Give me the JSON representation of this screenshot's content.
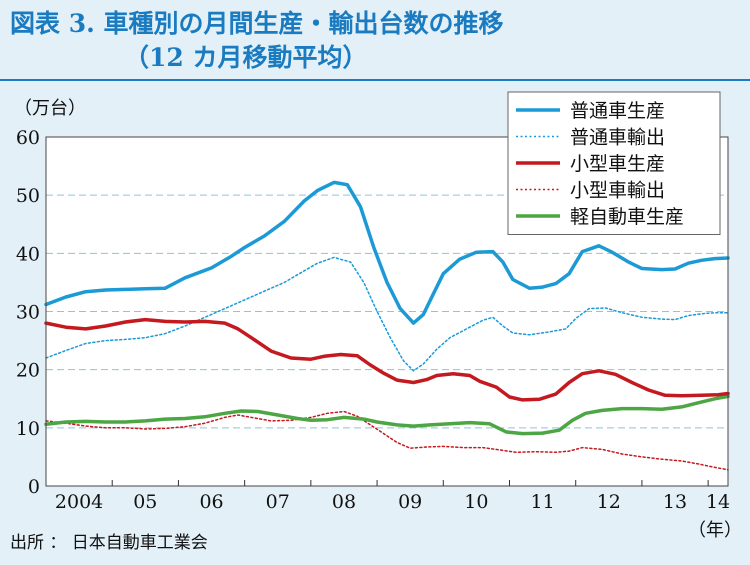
{
  "title_line1": "図表 3. 車種別の月間生産・輸出台数の推移",
  "title_line2": "（12 カ月移動平均）",
  "source": "出所 ： 日本自動車工業会",
  "chart_data": {
    "type": "line",
    "ylabel": "（万台）",
    "xlabel": "（年）",
    "ylim": [
      0,
      60
    ],
    "yticks": [
      0,
      10,
      20,
      30,
      40,
      50,
      60
    ],
    "xlim": [
      2004,
      2014.3
    ],
    "xticks": [
      {
        "label": "2004",
        "x": 2004.5
      },
      {
        "label": "05",
        "x": 2005.5
      },
      {
        "label": "06",
        "x": 2006.5
      },
      {
        "label": "07",
        "x": 2007.5
      },
      {
        "label": "08",
        "x": 2008.5
      },
      {
        "label": "09",
        "x": 2009.5
      },
      {
        "label": "10",
        "x": 2010.5
      },
      {
        "label": "11",
        "x": 2011.5
      },
      {
        "label": "12",
        "x": 2012.5
      },
      {
        "label": "13",
        "x": 2013.5
      },
      {
        "label": "14",
        "x": 2014.15
      }
    ],
    "grid": true,
    "legend_position": "top-right",
    "series": [
      {
        "name": "普通車生産",
        "color": "#1c9ad6",
        "style": "solid",
        "width": 3.5,
        "points": [
          [
            2004.0,
            31.2
          ],
          [
            2004.3,
            32.5
          ],
          [
            2004.6,
            33.4
          ],
          [
            2004.9,
            33.7
          ],
          [
            2005.2,
            33.8
          ],
          [
            2005.5,
            33.9
          ],
          [
            2005.8,
            34.0
          ],
          [
            2006.1,
            35.8
          ],
          [
            2006.5,
            37.5
          ],
          [
            2006.8,
            39.5
          ],
          [
            2007.0,
            41.0
          ],
          [
            2007.3,
            43.0
          ],
          [
            2007.6,
            45.5
          ],
          [
            2007.9,
            49.0
          ],
          [
            2008.1,
            50.8
          ],
          [
            2008.35,
            52.2
          ],
          [
            2008.55,
            51.8
          ],
          [
            2008.75,
            48.0
          ],
          [
            2008.95,
            41.0
          ],
          [
            2009.15,
            35.0
          ],
          [
            2009.35,
            30.5
          ],
          [
            2009.55,
            28.0
          ],
          [
            2009.7,
            29.5
          ],
          [
            2009.85,
            33.0
          ],
          [
            2010.0,
            36.5
          ],
          [
            2010.25,
            39.0
          ],
          [
            2010.5,
            40.2
          ],
          [
            2010.75,
            40.3
          ],
          [
            2010.9,
            38.5
          ],
          [
            2011.05,
            35.5
          ],
          [
            2011.3,
            34.0
          ],
          [
            2011.5,
            34.2
          ],
          [
            2011.7,
            34.8
          ],
          [
            2011.9,
            36.5
          ],
          [
            2012.1,
            40.3
          ],
          [
            2012.35,
            41.3
          ],
          [
            2012.55,
            40.2
          ],
          [
            2012.8,
            38.5
          ],
          [
            2013.0,
            37.4
          ],
          [
            2013.3,
            37.2
          ],
          [
            2013.5,
            37.3
          ],
          [
            2013.7,
            38.3
          ],
          [
            2013.9,
            38.8
          ],
          [
            2014.1,
            39.1
          ],
          [
            2014.3,
            39.2
          ]
        ]
      },
      {
        "name": "普通車輸出",
        "color": "#1c9ad6",
        "style": "dotted",
        "width": 1.5,
        "points": [
          [
            2004.0,
            22.0
          ],
          [
            2004.3,
            23.3
          ],
          [
            2004.6,
            24.5
          ],
          [
            2004.9,
            25.0
          ],
          [
            2005.2,
            25.2
          ],
          [
            2005.5,
            25.5
          ],
          [
            2005.8,
            26.2
          ],
          [
            2006.1,
            27.5
          ],
          [
            2006.4,
            29.0
          ],
          [
            2006.7,
            30.5
          ],
          [
            2007.0,
            32.0
          ],
          [
            2007.3,
            33.5
          ],
          [
            2007.6,
            35.0
          ],
          [
            2007.9,
            37.0
          ],
          [
            2008.1,
            38.3
          ],
          [
            2008.35,
            39.3
          ],
          [
            2008.6,
            38.5
          ],
          [
            2008.8,
            35.0
          ],
          [
            2009.0,
            30.0
          ],
          [
            2009.2,
            25.5
          ],
          [
            2009.4,
            21.5
          ],
          [
            2009.55,
            19.8
          ],
          [
            2009.7,
            21.0
          ],
          [
            2009.9,
            23.5
          ],
          [
            2010.1,
            25.5
          ],
          [
            2010.35,
            27.0
          ],
          [
            2010.6,
            28.5
          ],
          [
            2010.75,
            29.0
          ],
          [
            2010.9,
            27.5
          ],
          [
            2011.05,
            26.3
          ],
          [
            2011.3,
            26.0
          ],
          [
            2011.6,
            26.5
          ],
          [
            2011.85,
            27.0
          ],
          [
            2012.0,
            28.8
          ],
          [
            2012.2,
            30.5
          ],
          [
            2012.45,
            30.6
          ],
          [
            2012.7,
            29.8
          ],
          [
            2013.0,
            29.0
          ],
          [
            2013.3,
            28.7
          ],
          [
            2013.5,
            28.6
          ],
          [
            2013.7,
            29.3
          ],
          [
            2013.9,
            29.6
          ],
          [
            2014.1,
            29.8
          ],
          [
            2014.3,
            29.8
          ]
        ]
      },
      {
        "name": "小型車生産",
        "color": "#c41a1f",
        "style": "solid",
        "width": 3.5,
        "points": [
          [
            2004.0,
            28.0
          ],
          [
            2004.3,
            27.3
          ],
          [
            2004.6,
            27.0
          ],
          [
            2004.9,
            27.5
          ],
          [
            2005.2,
            28.2
          ],
          [
            2005.5,
            28.6
          ],
          [
            2005.8,
            28.3
          ],
          [
            2006.1,
            28.2
          ],
          [
            2006.4,
            28.3
          ],
          [
            2006.7,
            28.0
          ],
          [
            2006.9,
            27.0
          ],
          [
            2007.1,
            25.5
          ],
          [
            2007.4,
            23.2
          ],
          [
            2007.7,
            22.0
          ],
          [
            2008.0,
            21.8
          ],
          [
            2008.2,
            22.3
          ],
          [
            2008.45,
            22.6
          ],
          [
            2008.7,
            22.4
          ],
          [
            2008.9,
            20.8
          ],
          [
            2009.1,
            19.4
          ],
          [
            2009.3,
            18.2
          ],
          [
            2009.55,
            17.8
          ],
          [
            2009.75,
            18.3
          ],
          [
            2009.9,
            19.0
          ],
          [
            2010.15,
            19.3
          ],
          [
            2010.4,
            19.0
          ],
          [
            2010.55,
            18.0
          ],
          [
            2010.8,
            17.0
          ],
          [
            2011.0,
            15.3
          ],
          [
            2011.2,
            14.8
          ],
          [
            2011.45,
            14.9
          ],
          [
            2011.7,
            15.8
          ],
          [
            2011.9,
            17.8
          ],
          [
            2012.1,
            19.3
          ],
          [
            2012.35,
            19.8
          ],
          [
            2012.6,
            19.2
          ],
          [
            2012.85,
            17.8
          ],
          [
            2013.1,
            16.5
          ],
          [
            2013.35,
            15.6
          ],
          [
            2013.6,
            15.5
          ],
          [
            2013.9,
            15.6
          ],
          [
            2014.15,
            15.7
          ],
          [
            2014.3,
            15.9
          ]
        ]
      },
      {
        "name": "小型車輸出",
        "color": "#c41a1f",
        "style": "dotted",
        "width": 1.5,
        "points": [
          [
            2004.0,
            11.2
          ],
          [
            2004.3,
            10.8
          ],
          [
            2004.6,
            10.3
          ],
          [
            2004.9,
            10.0
          ],
          [
            2005.2,
            10.0
          ],
          [
            2005.5,
            9.8
          ],
          [
            2005.8,
            9.9
          ],
          [
            2006.1,
            10.2
          ],
          [
            2006.4,
            10.8
          ],
          [
            2006.7,
            11.8
          ],
          [
            2006.9,
            12.2
          ],
          [
            2007.1,
            11.8
          ],
          [
            2007.4,
            11.2
          ],
          [
            2007.7,
            11.3
          ],
          [
            2008.0,
            11.8
          ],
          [
            2008.25,
            12.5
          ],
          [
            2008.5,
            12.8
          ],
          [
            2008.7,
            12.0
          ],
          [
            2008.9,
            10.5
          ],
          [
            2009.1,
            9.0
          ],
          [
            2009.3,
            7.5
          ],
          [
            2009.5,
            6.5
          ],
          [
            2009.75,
            6.7
          ],
          [
            2010.0,
            6.8
          ],
          [
            2010.3,
            6.6
          ],
          [
            2010.6,
            6.6
          ],
          [
            2010.85,
            6.2
          ],
          [
            2011.1,
            5.8
          ],
          [
            2011.4,
            5.9
          ],
          [
            2011.7,
            5.8
          ],
          [
            2011.9,
            6.0
          ],
          [
            2012.1,
            6.6
          ],
          [
            2012.4,
            6.3
          ],
          [
            2012.7,
            5.5
          ],
          [
            2013.0,
            5.0
          ],
          [
            2013.3,
            4.6
          ],
          [
            2013.6,
            4.3
          ],
          [
            2013.85,
            3.8
          ],
          [
            2014.1,
            3.2
          ],
          [
            2014.3,
            2.8
          ]
        ]
      },
      {
        "name": "軽自動車生産",
        "color": "#4da644",
        "style": "solid",
        "width": 3.5,
        "points": [
          [
            2004.0,
            10.6
          ],
          [
            2004.3,
            11.0
          ],
          [
            2004.6,
            11.1
          ],
          [
            2004.9,
            11.0
          ],
          [
            2005.2,
            11.0
          ],
          [
            2005.5,
            11.2
          ],
          [
            2005.8,
            11.5
          ],
          [
            2006.1,
            11.6
          ],
          [
            2006.4,
            11.9
          ],
          [
            2006.7,
            12.5
          ],
          [
            2006.95,
            12.9
          ],
          [
            2007.2,
            12.8
          ],
          [
            2007.5,
            12.2
          ],
          [
            2007.8,
            11.6
          ],
          [
            2008.0,
            11.3
          ],
          [
            2008.25,
            11.4
          ],
          [
            2008.5,
            11.8
          ],
          [
            2008.8,
            11.5
          ],
          [
            2009.0,
            11.0
          ],
          [
            2009.3,
            10.5
          ],
          [
            2009.55,
            10.3
          ],
          [
            2009.8,
            10.5
          ],
          [
            2010.1,
            10.7
          ],
          [
            2010.4,
            10.9
          ],
          [
            2010.7,
            10.7
          ],
          [
            2010.95,
            9.3
          ],
          [
            2011.2,
            9.0
          ],
          [
            2011.5,
            9.1
          ],
          [
            2011.75,
            9.6
          ],
          [
            2011.95,
            11.3
          ],
          [
            2012.15,
            12.5
          ],
          [
            2012.4,
            13.0
          ],
          [
            2012.7,
            13.3
          ],
          [
            2013.0,
            13.3
          ],
          [
            2013.3,
            13.2
          ],
          [
            2013.6,
            13.6
          ],
          [
            2013.85,
            14.3
          ],
          [
            2014.1,
            15.0
          ],
          [
            2014.3,
            15.4
          ]
        ]
      }
    ]
  }
}
